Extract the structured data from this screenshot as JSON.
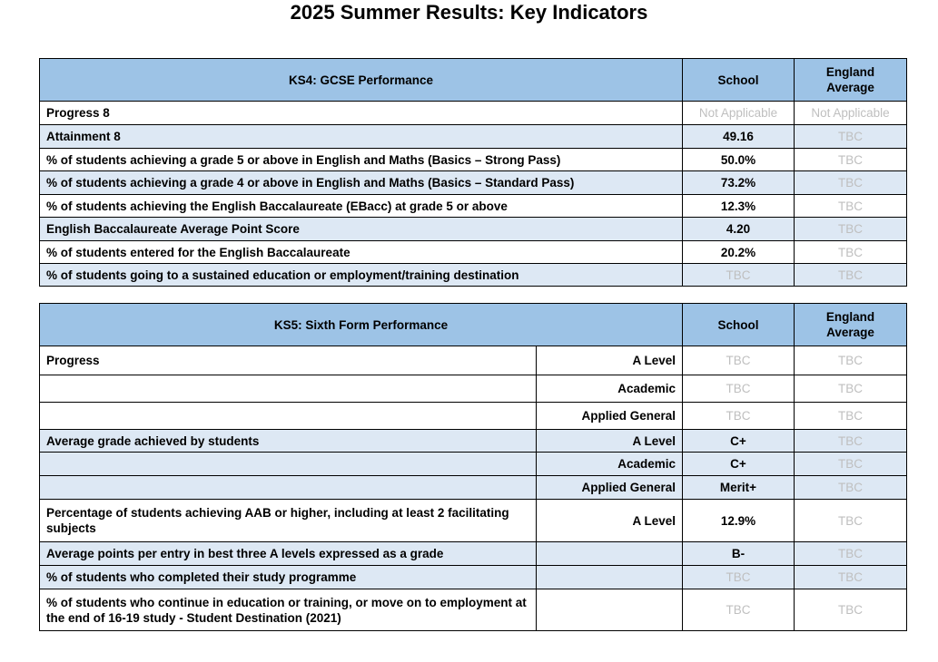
{
  "title": "2025 Summer Results: Key Indicators",
  "ks4": {
    "header": [
      "KS4: GCSE Performance",
      "School",
      "England Average"
    ],
    "rows": [
      {
        "label": "Progress 8",
        "school": "Not Applicable",
        "england": "Not Applicable"
      },
      {
        "label": "Attainment 8",
        "school": "49.16",
        "england": "TBC"
      },
      {
        "label": "% of students achieving a grade 5 or above in English and Maths (Basics – Strong Pass)",
        "school": "50.0%",
        "england": "TBC"
      },
      {
        "label": "% of students achieving a grade 4 or above in English and Maths (Basics – Standard Pass)",
        "school": "73.2%",
        "england": "TBC"
      },
      {
        "label": "% of students achieving the English Baccalaureate (EBacc) at grade 5 or above",
        "school": "12.3%",
        "england": "TBC"
      },
      {
        "label": "English Baccalaureate Average Point Score",
        "school": "4.20",
        "england": "TBC"
      },
      {
        "label": "% of students entered for the English Baccalaureate",
        "school": "20.2%",
        "england": "TBC"
      },
      {
        "label": "% of students going to a sustained education or employment/training destination",
        "school": "TBC",
        "england": "TBC"
      }
    ]
  },
  "ks5": {
    "header": [
      "KS5: Sixth Form Performance",
      "School",
      "England Average"
    ],
    "rows": [
      {
        "label": "Progress",
        "measure": "A Level",
        "school": "TBC",
        "england": "TBC"
      },
      {
        "measure": "Academic",
        "school": "TBC",
        "england": "TBC"
      },
      {
        "measure": "Applied General",
        "school": "TBC",
        "england": "TBC"
      },
      {
        "label": "Average grade achieved by students",
        "measure": "A Level",
        "school": "C+",
        "england": "TBC"
      },
      {
        "measure": "Academic",
        "school": "C+",
        "england": "TBC"
      },
      {
        "measure": "Applied General",
        "school": "Merit+",
        "england": "TBC"
      },
      {
        "label": "Percentage of students achieving AAB or higher, including at least 2 facilitating subjects",
        "measure": "A Level",
        "school": "12.9%",
        "england": "TBC"
      },
      {
        "label": "Average points per entry in best three A levels expressed as a grade",
        "school": "B-",
        "england": "TBC"
      },
      {
        "label": "% of students who completed their study programme",
        "school": "TBC",
        "england": "TBC"
      },
      {
        "label": "% of students who continue in education or training, or move on to employment at the end of 16-19 study - Student Destination (2021)",
        "school": "TBC",
        "england": "TBC"
      }
    ]
  }
}
